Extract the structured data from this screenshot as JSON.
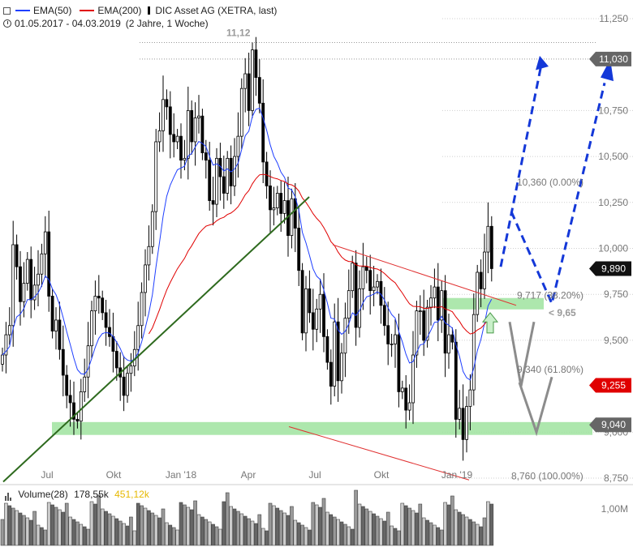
{
  "legend": {
    "ema50": "EMA(50)",
    "ema200": "EMA(200)",
    "instrument": "DIC Asset AG (XETRA, last)",
    "period": "01.05.2017 - 04.03.2019",
    "period_note": "(2 Jahre, 1 Woche)"
  },
  "volume_legend": {
    "label": "Volume(28)",
    "value1": "178,55k",
    "value2": "451,12k"
  },
  "colors": {
    "ema50": "#1f3fff",
    "ema200": "#e00000",
    "trend_line": "#2e6a1e",
    "channel": "#e03030",
    "zone": "#9fe39f",
    "arrow_blue": "#1438d8",
    "arrow_gray": "#8c8c8c",
    "candle": "#000000"
  },
  "chart_data": {
    "type": "candlestick",
    "ylim": [
      8.75,
      11.25
    ],
    "y_ticks": [
      "11,250",
      "10,750",
      "10,500",
      "10,250",
      "10,000",
      "9,750",
      "9,500",
      "9,000",
      "8,750"
    ],
    "x_ticks": [
      "Jul",
      "Okt",
      "Jan '18",
      "Apr",
      "Jul",
      "Okt",
      "Jan '19"
    ],
    "price_badges": [
      {
        "label": "11,030",
        "value": 11.03,
        "color": "#666666"
      },
      {
        "label": "9,890",
        "value": 9.89,
        "color": "#111111"
      },
      {
        "label": "9,255",
        "value": 9.255,
        "color": "#e00000"
      },
      {
        "label": "9,040",
        "value": 9.04,
        "color": "#666666"
      }
    ],
    "annotations": [
      {
        "text": "11,12",
        "value": 11.12
      },
      {
        "text": "10,360 (0.00%)",
        "value": 10.36
      },
      {
        "text": "9,717 (38.20%)",
        "value": 9.717
      },
      {
        "text": "9,340 (61.80%)",
        "value": 9.34
      },
      {
        "text": "8,760 (100.00%)",
        "value": 8.76
      },
      {
        "text": "< 9,65",
        "value": 9.65
      }
    ],
    "green_zones": [
      [
        9.668,
        9.73
      ],
      [
        8.985,
        9.055
      ]
    ],
    "volume_ticks": [
      "1,00M"
    ],
    "closes": [
      9.42,
      9.53,
      9.58,
      10.02,
      9.9,
      9.71,
      9.81,
      9.94,
      9.72,
      9.8,
      9.86,
      9.97,
      10.09,
      9.74,
      9.55,
      9.61,
      9.45,
      9.31,
      9.2,
      9.16,
      9.07,
      9.06,
      9.22,
      9.3,
      9.47,
      9.66,
      9.74,
      9.73,
      9.65,
      9.57,
      9.52,
      9.44,
      9.35,
      9.3,
      9.2,
      9.32,
      9.36,
      9.45,
      9.58,
      9.76,
      9.91,
      10.01,
      10.2,
      10.58,
      10.64,
      10.81,
      10.77,
      10.62,
      10.58,
      10.61,
      10.48,
      10.49,
      10.75,
      10.58,
      10.71,
      10.72,
      10.52,
      10.48,
      10.26,
      10.24,
      10.49,
      10.39,
      10.3,
      10.49,
      10.34,
      10.5,
      10.61,
      10.87,
      10.95,
      10.75,
      11.08,
      10.93,
      10.79,
      10.47,
      10.34,
      10.21,
      10.22,
      10.3,
      10.19,
      10.26,
      10.07,
      10.27,
      10.11,
      9.88,
      9.54,
      9.78,
      9.65,
      9.56,
      9.67,
      9.75,
      9.52,
      9.38,
      9.25,
      9.6,
      9.28,
      9.43,
      9.62,
      9.77,
      9.92,
      9.57,
      9.78,
      9.9,
      9.88,
      9.77,
      9.79,
      9.82,
      9.69,
      9.58,
      9.48,
      9.48,
      9.53,
      9.22,
      9.24,
      9.12,
      9.16,
      9.42,
      9.66,
      9.66,
      9.5,
      9.68,
      9.73,
      9.79,
      9.61,
      9.77,
      9.43,
      9.53,
      9.49,
      9.07,
      9.13,
      8.96,
      9.14,
      9.23,
      9.64,
      9.87,
      9.78,
      9.98,
      10.12,
      9.89
    ]
  }
}
